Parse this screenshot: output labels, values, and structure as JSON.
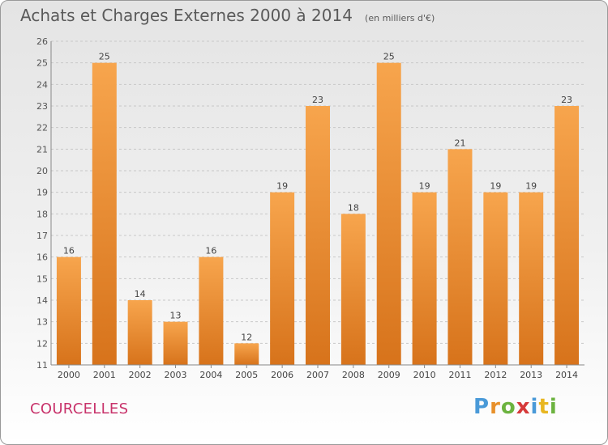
{
  "header": {
    "title": "Achats et Charges Externes 2000 à 2014",
    "unit": "(en milliers d'€)"
  },
  "footer": {
    "town": "COURCELLES",
    "logo_text": "Proxiti"
  },
  "colors": {
    "bar_light": "#f7a54d",
    "bar_dark": "#d7731b",
    "grid": "#c8c8c8",
    "town": "#c8336b"
  },
  "chart_data": {
    "type": "bar",
    "title": "Achats et Charges Externes 2000 à 2014",
    "xlabel": "",
    "ylabel": "",
    "categories": [
      "2000",
      "2001",
      "2002",
      "2003",
      "2004",
      "2005",
      "2006",
      "2007",
      "2008",
      "2009",
      "2010",
      "2011",
      "2012",
      "2013",
      "2014"
    ],
    "values": [
      16,
      25,
      14,
      13,
      16,
      12,
      19,
      23,
      18,
      25,
      19,
      21,
      19,
      19,
      23
    ],
    "ylim": [
      11,
      26
    ],
    "yticks": [
      11,
      12,
      13,
      14,
      15,
      16,
      17,
      18,
      19,
      20,
      21,
      22,
      23,
      24,
      25,
      26
    ],
    "grid": "horizontal-dashed",
    "legend": "none"
  }
}
